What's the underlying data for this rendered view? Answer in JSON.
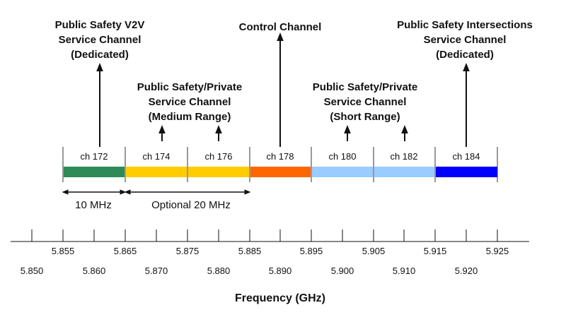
{
  "channels": [
    {
      "label": "ch 172",
      "color": "#2e8b57"
    },
    {
      "label": "ch 174",
      "color": "#ffcc00"
    },
    {
      "label": "ch 176",
      "color": "#ffcc00"
    },
    {
      "label": "ch 178",
      "color": "#ff6600"
    },
    {
      "label": "ch 180",
      "color": "#99ccff"
    },
    {
      "label": "ch 182",
      "color": "#99ccff"
    },
    {
      "label": "ch 184",
      "color": "#0000ff"
    }
  ],
  "annotations": {
    "v2v": [
      "Public Safety V2V",
      "Service Channel",
      "(Dedicated)"
    ],
    "medium": [
      "Public Safety/Private",
      "Service Channel",
      "(Medium Range)"
    ],
    "control": [
      "Control Channel"
    ],
    "short": [
      "Public Safety/Private",
      "Service Channel",
      "(Short Range)"
    ],
    "intersections": [
      "Public Safety Intersections",
      "Service Channel",
      "(Dedicated)"
    ]
  },
  "bandwidth": {
    "ten": "10 MHz",
    "twenty": "Optional 20 MHz"
  },
  "axis": {
    "upper_ticks": [
      "5.855",
      "5.865",
      "5.875",
      "5.885",
      "5.895",
      "5.905",
      "5.915",
      "5.925"
    ],
    "lower_ticks": [
      "5.850",
      "5.860",
      "5.870",
      "5.880",
      "5.890",
      "5.900",
      "5.910",
      "5.920"
    ],
    "title": "Frequency (GHz)"
  }
}
